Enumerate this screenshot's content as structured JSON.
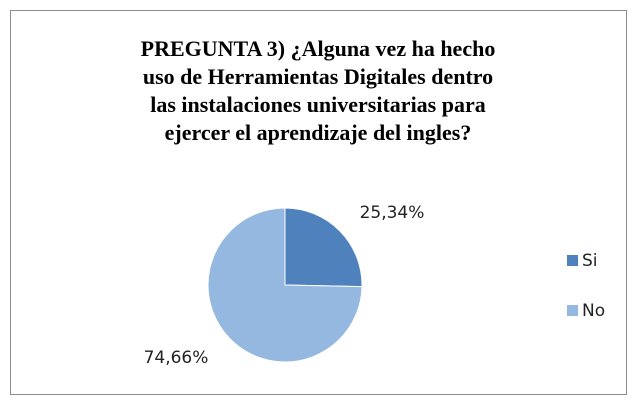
{
  "chart_data": {
    "type": "pie",
    "title": [
      "PREGUNTA 3) ¿Alguna vez ha hecho",
      "uso de Herramientas Digitales dentro",
      "las instalaciones universitarias para",
      "ejercer el aprendizaje del ingles?"
    ],
    "categories": [
      "Si",
      "No"
    ],
    "values": [
      25.34,
      74.66
    ],
    "value_labels": [
      "25,34%",
      "74,66%"
    ],
    "colors": [
      "#4f81bd",
      "#95b8e0"
    ],
    "legend": "right"
  }
}
